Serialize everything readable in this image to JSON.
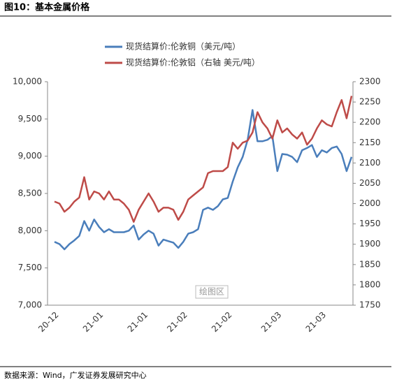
{
  "header": {
    "title": "图10：基本金属价格"
  },
  "chart_data": {
    "type": "line",
    "categories": [
      "20-12",
      null,
      null,
      null,
      null,
      null,
      null,
      null,
      null,
      "21-01",
      null,
      null,
      null,
      null,
      null,
      null,
      null,
      null,
      "21-01",
      null,
      null,
      null,
      null,
      null,
      null,
      null,
      "21-02",
      null,
      null,
      null,
      null,
      null,
      null,
      null,
      null,
      "21-02",
      null,
      null,
      null,
      null,
      null,
      null,
      null,
      null,
      null,
      "21-03",
      null,
      null,
      null,
      null,
      null,
      null,
      null,
      null,
      "21-03",
      null,
      null,
      null,
      null,
      null,
      null
    ],
    "series": [
      {
        "name": "现货结算价:伦敦铜（美元/吨）",
        "color": "#4a7ebb",
        "axis": "y",
        "values": [
          7850,
          7820,
          7750,
          7820,
          7870,
          7930,
          8130,
          8000,
          8150,
          8050,
          7980,
          8020,
          7980,
          7980,
          7980,
          8000,
          8070,
          7880,
          7950,
          8000,
          7960,
          7800,
          7880,
          7860,
          7840,
          7770,
          7850,
          7960,
          7980,
          8020,
          8280,
          8310,
          8280,
          8330,
          8420,
          8440,
          8660,
          8850,
          8990,
          9220,
          9620,
          9200,
          9200,
          9220,
          9270,
          8800,
          9030,
          9020,
          8990,
          8920,
          9080,
          9110,
          9150,
          8990,
          9080,
          9050,
          9110,
          9130,
          9030,
          8800,
          8990
        ]
      },
      {
        "name": "现货结算价:伦敦铝（右轴 美元/吨）",
        "color": "#be4b48",
        "axis": "y2",
        "values": [
          2005,
          2000,
          1980,
          1990,
          2005,
          2015,
          2065,
          2010,
          2030,
          2025,
          2010,
          2030,
          2010,
          2010,
          2000,
          1985,
          1955,
          1985,
          2005,
          2025,
          2005,
          1980,
          1990,
          1990,
          1985,
          1960,
          1980,
          2010,
          2020,
          2030,
          2040,
          2075,
          2080,
          2080,
          2080,
          2090,
          2150,
          2135,
          2150,
          2155,
          2175,
          2225,
          2200,
          2185,
          2160,
          2205,
          2175,
          2185,
          2170,
          2160,
          2175,
          2145,
          2160,
          2185,
          2205,
          2195,
          2190,
          2225,
          2255,
          2210,
          2265
        ]
      }
    ],
    "ylim": [
      7000,
      10000
    ],
    "yticks": [
      {
        "value": 7000,
        "label": "7,000"
      },
      {
        "value": 7500,
        "label": "7,500"
      },
      {
        "value": 8000,
        "label": "8,000"
      },
      {
        "value": 8500,
        "label": "8,500"
      },
      {
        "value": 9000,
        "label": "9,000"
      },
      {
        "value": 9500,
        "label": "9,500"
      },
      {
        "value": 10000,
        "label": "10,000"
      }
    ],
    "y2lim": [
      1750,
      2300
    ],
    "y2ticks": [
      1750,
      1800,
      1850,
      1900,
      1950,
      2000,
      2050,
      2100,
      2150,
      2200,
      2250,
      2300
    ],
    "watermark": "绘图区",
    "legend": "top-left"
  },
  "footer": {
    "source": "数据来源：Wind，广发证券发展研究中心"
  }
}
